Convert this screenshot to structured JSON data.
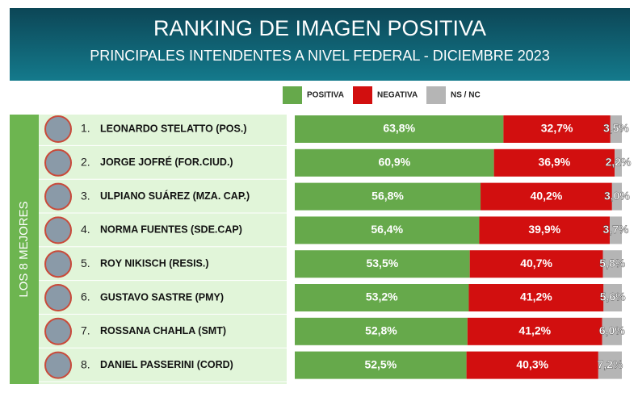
{
  "chart_data": {
    "type": "bar",
    "orientation": "horizontal",
    "stacked": true,
    "title": "RANKING DE IMAGEN POSITIVA",
    "subtitle": "PRINCIPALES INTENDENTES A NIVEL FEDERAL - DICIEMBRE 2023",
    "group_label": "LOS 8 MEJORES",
    "ranks": [
      "1.",
      "2.",
      "3.",
      "4.",
      "5.",
      "6.",
      "7.",
      "8."
    ],
    "categories": [
      "LEONARDO STELATTO (POS.)",
      "JORGE JOFRÉ (FOR.CIUD.)",
      "ULPIANO SUÁREZ (MZA. CAP.)",
      "NORMA FUENTES (SDE.CAP)",
      "ROY NIKISCH (RESIS.)",
      "GUSTAVO SASTRE (PMY)",
      "ROSSANA CHAHLA (SMT)",
      "DANIEL PASSERINI (CORD)"
    ],
    "series": [
      {
        "name": "POSITIVA",
        "color": "#66a94b",
        "values": [
          63.8,
          60.9,
          56.8,
          56.4,
          53.5,
          53.2,
          52.8,
          52.5
        ],
        "value_labels": [
          "63,8%",
          "60,9%",
          "56,8%",
          "56,4%",
          "53,5%",
          "53,2%",
          "52,8%",
          "52,5%"
        ]
      },
      {
        "name": "NEGATIVA",
        "color": "#d20f0f",
        "values": [
          32.7,
          36.9,
          40.2,
          39.9,
          40.7,
          41.2,
          41.2,
          40.3
        ],
        "value_labels": [
          "32,7%",
          "36,9%",
          "40,2%",
          "39,9%",
          "40,7%",
          "41,2%",
          "41,2%",
          "40,3%"
        ]
      },
      {
        "name": "NS / NC",
        "color": "#b5b5b5",
        "values": [
          3.5,
          2.2,
          3.0,
          3.7,
          5.8,
          5.6,
          6.0,
          7.2
        ],
        "value_labels": [
          "3,5%",
          "2,2%",
          "3,0%",
          "3,7%",
          "5,8%",
          "5,6%",
          "6,0%",
          "7,2%"
        ]
      }
    ],
    "xlim": [
      0,
      100
    ]
  }
}
